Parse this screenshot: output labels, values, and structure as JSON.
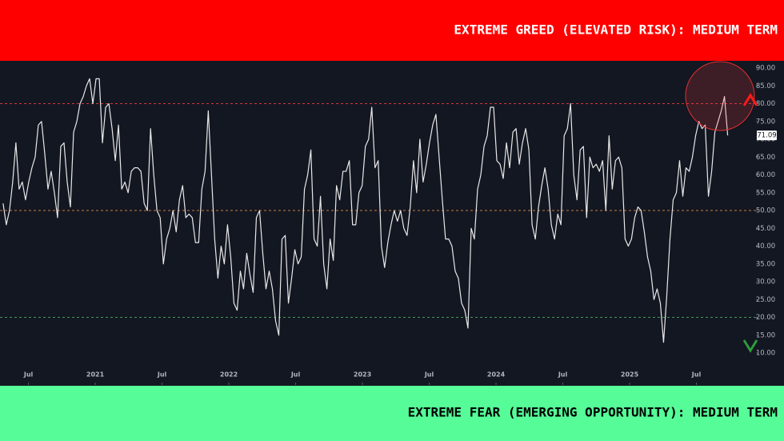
{
  "chart_data": {
    "type": "line",
    "annotations": [
      "EXTREME GREED (ELEVATED RISK): MEDIUM TERM",
      "EXTREME FEAR (EMERGING OPPORTUNITY): MEDIUM TERM"
    ],
    "color": "#e8e8e8",
    "x": [
      2020.31,
      2020.334,
      2020.358,
      2020.382,
      2020.406,
      2020.43,
      2020.454,
      2020.478,
      2020.502,
      2020.526,
      2020.55,
      2020.574,
      2020.598,
      2020.622,
      2020.646,
      2020.67,
      2020.694,
      2020.718,
      2020.742,
      2020.766,
      2020.79,
      2020.814,
      2020.838,
      2020.862,
      2020.886,
      2020.91,
      2020.934,
      2020.958,
      2020.982,
      2021.006,
      2021.03,
      2021.054,
      2021.078,
      2021.102,
      2021.126,
      2021.15,
      2021.174,
      2021.198,
      2021.222,
      2021.246,
      2021.27,
      2021.294,
      2021.318,
      2021.342,
      2021.366,
      2021.39,
      2021.414,
      2021.438,
      2021.462,
      2021.486,
      2021.51,
      2021.534,
      2021.558,
      2021.582,
      2021.606,
      2021.63,
      2021.654,
      2021.678,
      2021.702,
      2021.726,
      2021.75,
      2021.774,
      2021.798,
      2021.822,
      2021.846,
      2021.87,
      2021.894,
      2021.918,
      2021.942,
      2021.966,
      2021.99,
      2022.014,
      2022.038,
      2022.062,
      2022.086,
      2022.11,
      2022.134,
      2022.158,
      2022.182,
      2022.206,
      2022.23,
      2022.254,
      2022.278,
      2022.302,
      2022.326,
      2022.35,
      2022.374,
      2022.398,
      2022.422,
      2022.446,
      2022.47,
      2022.494,
      2022.518,
      2022.542,
      2022.566,
      2022.59,
      2022.614,
      2022.638,
      2022.662,
      2022.686,
      2022.71,
      2022.734,
      2022.758,
      2022.782,
      2022.806,
      2022.83,
      2022.854,
      2022.878,
      2022.902,
      2022.926,
      2022.95,
      2022.974,
      2022.998,
      2023.022,
      2023.046,
      2023.07,
      2023.094,
      2023.118,
      2023.142,
      2023.166,
      2023.19,
      2023.214,
      2023.238,
      2023.262,
      2023.286,
      2023.31,
      2023.334,
      2023.358,
      2023.382,
      2023.406,
      2023.43,
      2023.454,
      2023.478,
      2023.502,
      2023.526,
      2023.55,
      2023.574,
      2023.598,
      2023.622,
      2023.646,
      2023.67,
      2023.694,
      2023.718,
      2023.742,
      2023.766,
      2023.79,
      2023.814,
      2023.838,
      2023.862,
      2023.886,
      2023.91,
      2023.934,
      2023.958,
      2023.982,
      2024.006,
      2024.03,
      2024.054,
      2024.078,
      2024.102,
      2024.126,
      2024.15,
      2024.174,
      2024.198,
      2024.222,
      2024.246,
      2024.27,
      2024.294,
      2024.318,
      2024.342,
      2024.366,
      2024.39,
      2024.414,
      2024.438,
      2024.462,
      2024.486,
      2024.51,
      2024.534,
      2024.558,
      2024.582,
      2024.606,
      2024.63,
      2024.654,
      2024.678,
      2024.702,
      2024.726,
      2024.75,
      2024.774,
      2024.798,
      2024.822,
      2024.846,
      2024.87,
      2024.894,
      2024.918,
      2024.942,
      2024.966,
      2024.99,
      2025.014,
      2025.038,
      2025.062,
      2025.086,
      2025.11,
      2025.134,
      2025.158,
      2025.182,
      2025.206,
      2025.23,
      2025.254,
      2025.278,
      2025.302,
      2025.326,
      2025.35,
      2025.374,
      2025.398,
      2025.422,
      2025.446,
      2025.47,
      2025.494,
      2025.518,
      2025.542,
      2025.566,
      2025.59,
      2025.614,
      2025.638,
      2025.662,
      2025.686,
      2025.71,
      2025.734
    ],
    "values": [
      52,
      46,
      50,
      58,
      69,
      56,
      58,
      53,
      58,
      62,
      65,
      74,
      75,
      66,
      56,
      61,
      55,
      48,
      68,
      69,
      58,
      51,
      72,
      75,
      80,
      82,
      85,
      87,
      80,
      87,
      87,
      69,
      79,
      80,
      73,
      64,
      74,
      56,
      58,
      55,
      61,
      62,
      62,
      61,
      52,
      50,
      73,
      60,
      50,
      48,
      35,
      42,
      45,
      50,
      44,
      53,
      57,
      48,
      49,
      48,
      41,
      41,
      56,
      61,
      78,
      60,
      42,
      31,
      40,
      35,
      46,
      37,
      24,
      22,
      33,
      28,
      38,
      32,
      27,
      48,
      50,
      38,
      28,
      33,
      28,
      19,
      15,
      42,
      43,
      24,
      31,
      39,
      35,
      37,
      56,
      60,
      67,
      42,
      40,
      54,
      35,
      28,
      42,
      36,
      57,
      53,
      61,
      61,
      64,
      46,
      46,
      55,
      57,
      68,
      70,
      79,
      62,
      64,
      40,
      34,
      41,
      46,
      50,
      47,
      50,
      45,
      43,
      51,
      64,
      55,
      70,
      58,
      63,
      69,
      74,
      77,
      65,
      53,
      42,
      42,
      40,
      33,
      31,
      24,
      22,
      17,
      45,
      42,
      56,
      60,
      68,
      71,
      79,
      79,
      64,
      63,
      59,
      69,
      62,
      72,
      73,
      63,
      69,
      73,
      67,
      46,
      42,
      51,
      57,
      62,
      56,
      46,
      42,
      49,
      46,
      71,
      73,
      80,
      60,
      53,
      67,
      68,
      48,
      65,
      62,
      63,
      61,
      64,
      50,
      71,
      56,
      64,
      65,
      62,
      42,
      40,
      42,
      48,
      51,
      50,
      44,
      37,
      33,
      25,
      28,
      24,
      13,
      26,
      42,
      53,
      55,
      64,
      54,
      62,
      61,
      65,
      71,
      75,
      73,
      74,
      54,
      61,
      72,
      75,
      78,
      82,
      71.09
    ],
    "xlim": [
      2020.287,
      2025.946
    ],
    "xticks": [
      {
        "value": 2020.5,
        "label": "Jul"
      },
      2021,
      {
        "value": 2021.5,
        "label": "Jul"
      },
      2022,
      {
        "value": 2022.5,
        "label": "Jul"
      },
      2023,
      {
        "value": 2023.5,
        "label": "Jul"
      },
      2024,
      {
        "value": 2024.5,
        "label": "Jul"
      },
      2025,
      {
        "value": 2025.5,
        "label": "Jul"
      }
    ],
    "ylim": [
      1.7,
      91.8
    ],
    "yticks": [
      {
        "value": 10,
        "label": "10.00"
      },
      {
        "value": 15,
        "label": "15.00"
      },
      {
        "value": 20,
        "label": "20.00"
      },
      {
        "value": 25,
        "label": "25.00"
      },
      {
        "value": 30,
        "label": "30.00"
      },
      {
        "value": 35,
        "label": "35.00"
      },
      {
        "value": 40,
        "label": "40.00"
      },
      {
        "value": 45,
        "label": "45.00"
      },
      {
        "value": 50,
        "label": "50.00"
      },
      {
        "value": 55,
        "label": "55.00"
      },
      {
        "value": 60,
        "label": "60.00"
      },
      {
        "value": 65,
        "label": "65.00"
      },
      {
        "value": 70,
        "label": "70.00"
      },
      {
        "value": 75,
        "label": "75.00"
      },
      {
        "value": 80,
        "label": "80.00"
      },
      {
        "value": 85,
        "label": "85.00"
      },
      {
        "value": 90,
        "label": "90.00"
      }
    ],
    "hlines": [
      {
        "value": 80,
        "color": "#d9363e"
      },
      {
        "value": 50,
        "color": "#c87a3a"
      },
      {
        "value": 20,
        "color": "#3f9c5a"
      }
    ],
    "grid": false
  }
}
